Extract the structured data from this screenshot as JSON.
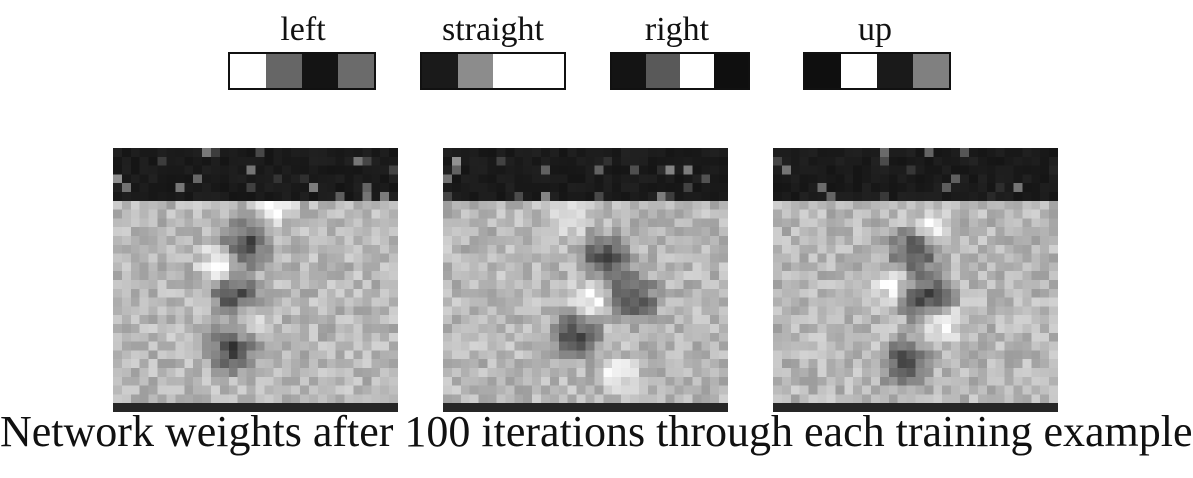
{
  "outputs": [
    {
      "label": "left",
      "cells": [
        1.0,
        0.4,
        0.08,
        0.42
      ]
    },
    {
      "label": "straight",
      "cells": [
        0.1,
        0.55,
        1.0,
        1.0
      ]
    },
    {
      "label": "right",
      "cells": [
        0.08,
        0.35,
        1.0,
        0.06
      ]
    },
    {
      "label": "up",
      "cells": [
        0.06,
        1.0,
        0.1,
        0.5
      ]
    }
  ],
  "weight_maps": [
    {
      "seed": 11,
      "dark_blobs": [
        [
          0.45,
          0.35
        ],
        [
          0.42,
          0.55
        ],
        [
          0.4,
          0.75
        ]
      ],
      "light_blobs": [
        [
          0.55,
          0.2
        ],
        [
          0.35,
          0.42
        ],
        [
          0.45,
          0.62
        ]
      ]
    },
    {
      "seed": 23,
      "dark_blobs": [
        [
          0.55,
          0.4
        ],
        [
          0.45,
          0.7
        ],
        [
          0.65,
          0.55
        ]
      ],
      "light_blobs": [
        [
          0.42,
          0.25
        ],
        [
          0.5,
          0.55
        ],
        [
          0.6,
          0.85
        ]
      ]
    },
    {
      "seed": 37,
      "dark_blobs": [
        [
          0.48,
          0.38
        ],
        [
          0.52,
          0.55
        ],
        [
          0.45,
          0.8
        ]
      ],
      "light_blobs": [
        [
          0.55,
          0.28
        ],
        [
          0.4,
          0.5
        ],
        [
          0.58,
          0.65
        ]
      ]
    }
  ],
  "caption": "Network weights after 100 iterations through each training example"
}
